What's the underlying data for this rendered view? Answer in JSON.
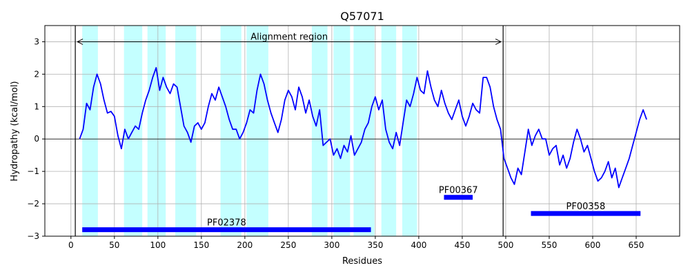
{
  "chart_data": {
    "type": "line",
    "title": "Q57071",
    "xlabel": "Residues",
    "ylabel": "Hydropathy (kcal/mol)",
    "xlim": [
      -30,
      700
    ],
    "ylim": [
      -3,
      3.5
    ],
    "x_ticks": [
      0,
      50,
      100,
      150,
      200,
      250,
      300,
      350,
      400,
      450,
      500,
      550,
      600,
      650
    ],
    "y_ticks": [
      -3,
      -2,
      -1,
      0,
      1,
      2,
      3
    ],
    "grid": true,
    "colors": {
      "line": "#0000ff",
      "highlight": "#c4ffff",
      "domain": "#0000ff",
      "axis": "#000000",
      "grid": "#b0b0b0"
    },
    "alignment_region": {
      "label": "Alignment region",
      "start": 5,
      "end": 497,
      "y": 3
    },
    "highlight_regions": [
      [
        13,
        31
      ],
      [
        61,
        82
      ],
      [
        88,
        109
      ],
      [
        120,
        144
      ],
      [
        172,
        196
      ],
      [
        202,
        227
      ],
      [
        277,
        295
      ],
      [
        302,
        321
      ],
      [
        325,
        349
      ],
      [
        357,
        374
      ],
      [
        381,
        398
      ]
    ],
    "domains": [
      {
        "name": "PF02378",
        "start": 13,
        "end": 345,
        "y": -2.8
      },
      {
        "name": "PF00367",
        "start": 429,
        "end": 462,
        "y": -1.8
      },
      {
        "name": "PF00358",
        "start": 529,
        "end": 655,
        "y": -2.3
      }
    ],
    "series": [
      {
        "x": [
          10,
          14,
          18,
          22,
          26,
          30,
          34,
          38,
          42,
          46,
          50,
          54,
          58,
          62,
          66,
          70,
          74,
          78,
          82,
          86,
          90,
          94,
          98,
          102,
          106,
          110,
          114,
          118,
          122,
          126,
          130,
          134,
          138,
          142,
          146,
          150,
          154,
          158,
          162,
          166,
          170,
          174,
          178,
          182,
          186,
          190,
          194,
          198,
          202,
          206,
          210,
          214,
          218,
          222,
          226,
          230,
          234,
          238,
          242,
          246,
          250,
          254,
          258,
          262,
          266,
          270,
          274,
          278,
          282,
          286,
          290,
          294,
          298,
          302,
          306,
          310,
          314,
          318,
          322,
          326,
          330,
          334,
          338,
          342,
          346,
          350,
          354,
          358,
          362,
          366,
          370,
          374,
          378,
          382,
          386,
          390,
          394,
          398,
          402,
          406,
          410,
          414,
          418,
          422,
          426,
          430,
          434,
          438,
          442,
          446,
          450,
          454,
          458,
          462,
          466,
          470,
          474,
          478,
          482,
          486,
          490,
          494,
          498,
          502,
          506,
          510,
          514,
          518,
          522,
          526,
          530,
          534,
          538,
          542,
          546,
          550,
          554,
          558,
          562,
          566,
          570,
          574,
          578,
          582,
          586,
          590,
          594,
          598,
          602,
          606,
          610,
          614,
          618,
          622,
          626,
          630,
          634,
          638,
          642,
          646,
          650,
          654,
          658,
          662
        ],
        "y": [
          0.0,
          0.3,
          1.1,
          0.9,
          1.6,
          2.0,
          1.7,
          1.2,
          0.8,
          0.85,
          0.7,
          0.1,
          -0.3,
          0.3,
          0.0,
          0.2,
          0.4,
          0.3,
          0.8,
          1.2,
          1.5,
          1.9,
          2.2,
          1.5,
          1.9,
          1.6,
          1.4,
          1.7,
          1.6,
          1.0,
          0.4,
          0.2,
          -0.1,
          0.4,
          0.5,
          0.3,
          0.5,
          1.0,
          1.4,
          1.2,
          1.6,
          1.3,
          1.0,
          0.6,
          0.3,
          0.3,
          0.0,
          0.2,
          0.5,
          0.9,
          0.8,
          1.5,
          2.0,
          1.7,
          1.2,
          0.8,
          0.5,
          0.2,
          0.6,
          1.2,
          1.5,
          1.3,
          0.9,
          1.6,
          1.3,
          0.8,
          1.2,
          0.7,
          0.4,
          0.9,
          -0.2,
          -0.1,
          0.0,
          -0.5,
          -0.3,
          -0.6,
          -0.2,
          -0.4,
          0.1,
          -0.5,
          -0.3,
          -0.1,
          0.3,
          0.5,
          1.0,
          1.3,
          0.9,
          1.2,
          0.3,
          -0.1,
          -0.3,
          0.2,
          -0.2,
          0.5,
          1.2,
          1.0,
          1.4,
          1.9,
          1.5,
          1.4,
          2.1,
          1.6,
          1.2,
          1.0,
          1.5,
          1.1,
          0.8,
          0.6,
          0.9,
          1.2,
          0.7,
          0.4,
          0.7,
          1.1,
          0.9,
          0.8,
          1.9,
          1.9,
          1.6,
          1.0,
          0.6,
          0.3,
          -0.6,
          -0.9,
          -1.2,
          -1.4,
          -0.9,
          -1.1,
          -0.4,
          0.3,
          -0.2,
          0.1,
          0.3,
          0.0,
          0.0,
          -0.5,
          -0.3,
          -0.2,
          -0.8,
          -0.5,
          -0.9,
          -0.6,
          -0.1,
          0.3,
          0.0,
          -0.4,
          -0.2,
          -0.6,
          -1.0,
          -1.3,
          -1.2,
          -1.0,
          -0.7,
          -1.2,
          -0.9,
          -1.5,
          -1.2,
          -0.9,
          -0.6,
          -0.2,
          0.2,
          0.6,
          0.9,
          0.6
        ]
      }
    ]
  }
}
